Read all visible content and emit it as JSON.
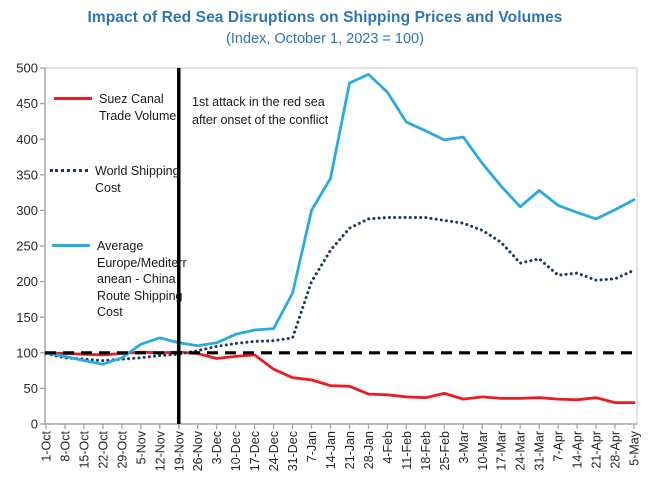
{
  "header": {
    "title": "Impact of Red Sea Disruptions on Shipping Prices and Volumes",
    "subtitle": "(Index, October 1, 2023 = 100)"
  },
  "annotation": {
    "text": "1st attack in the red sea after onset of the conflict"
  },
  "legend": {
    "items": [
      {
        "label": "Suez Canal\nTrade Volume",
        "series": "Suez Canal Trade Volume",
        "color": "#ed1c24",
        "style": "solid"
      },
      {
        "label": "World Shipping\nCost",
        "series": "World Shipping Cost",
        "color": "#1f3864",
        "style": "dotted"
      },
      {
        "label": "Average\nEurope/Mediterr\nanean - China\nRoute Shipping\nCost",
        "series": "Average Europe/Mediterranean - China Route Shipping Cost",
        "color": "#29abe2",
        "style": "solid"
      }
    ]
  },
  "colors": {
    "title_blue": "#2e75b6",
    "suez_red": "#ed1c24",
    "world_navy": "#1f3864",
    "europe_cyan": "#29abe2",
    "baseline_black": "#000000",
    "event_line_black": "#000000",
    "axis_gray": "#a6a6a6",
    "border_gray": "#d9d9d9",
    "tick_text": "#262626"
  },
  "chart_data": {
    "type": "line",
    "title": "Impact of Red Sea Disruptions on Shipping Prices and Volumes",
    "subtitle": "(Index, October 1, 2023 = 100)",
    "xlabel": "",
    "ylabel": "",
    "ylim": [
      0,
      500
    ],
    "ytick_step": 50,
    "grid": false,
    "legend_position": "left-inside",
    "categories": [
      "1-Oct",
      "8-Oct",
      "15-Oct",
      "22-Oct",
      "29-Oct",
      "5-Nov",
      "12-Nov",
      "19-Nov",
      "26-Nov",
      "3-Dec",
      "10-Dec",
      "17-Dec",
      "24-Dec",
      "31-Dec",
      "7-Jan",
      "14-Jan",
      "21-Jan",
      "28-Jan",
      "4-Feb",
      "11-Feb",
      "18-Feb",
      "25-Feb",
      "3-Mar",
      "10-Mar",
      "17-Mar",
      "24-Mar",
      "31-Mar",
      "7-Apr",
      "14-Apr",
      "21-Apr",
      "28-Apr",
      "5-May"
    ],
    "series": [
      {
        "name": "Suez Canal Trade Volume",
        "color": "#ed1c24",
        "style": "solid",
        "values": [
          100,
          99,
          98,
          97,
          99,
          101,
          100,
          101,
          99,
          92,
          95,
          97,
          77,
          65,
          62,
          54,
          53,
          42,
          41,
          38,
          37,
          43,
          35,
          38,
          36,
          36,
          37,
          35,
          34,
          37,
          30,
          30
        ]
      },
      {
        "name": "World Shipping Cost",
        "color": "#1f3864",
        "style": "dotted",
        "values": [
          99,
          93,
          91,
          89,
          91,
          93,
          96,
          98,
          103,
          109,
          113,
          116,
          117,
          121,
          200,
          244,
          275,
          288,
          290,
          290,
          290,
          286,
          282,
          272,
          255,
          226,
          232,
          209,
          212,
          202,
          204,
          216
        ]
      },
      {
        "name": "Average Europe/Mediterranean - China Route Shipping Cost",
        "color": "#29abe2",
        "style": "solid",
        "values": [
          100,
          95,
          89,
          84,
          93,
          112,
          121,
          114,
          110,
          114,
          126,
          132,
          134,
          184,
          300,
          345,
          479,
          491,
          466,
          424,
          412,
          399,
          403,
          366,
          334,
          305,
          328,
          307,
          297,
          288,
          301,
          315
        ]
      }
    ],
    "baseline": {
      "value": 100,
      "style": "dashed",
      "color": "#000000"
    },
    "event_line": {
      "category": "19-Nov",
      "label": "1st attack in the red sea after onset of the conflict"
    }
  }
}
